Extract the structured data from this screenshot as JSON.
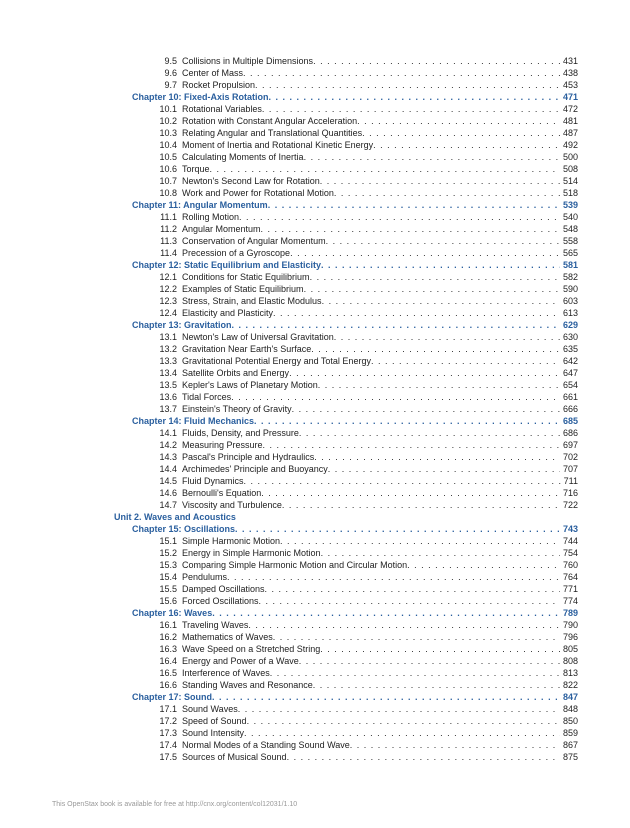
{
  "colors": {
    "link": "#2a5f9e",
    "text": "#222222",
    "footer": "#999999",
    "background": "#ffffff"
  },
  "fonts": {
    "body": 9,
    "footer": 7
  },
  "entries": [
    {
      "type": "section",
      "num": "9.5",
      "title": "Collisions in Multiple Dimensions",
      "page": "431"
    },
    {
      "type": "section",
      "num": "9.6",
      "title": "Center of Mass",
      "page": "438"
    },
    {
      "type": "section",
      "num": "9.7",
      "title": "Rocket Propulsion",
      "page": "453"
    },
    {
      "type": "chapter",
      "title": "Chapter 10:  Fixed-Axis Rotation",
      "page": "471"
    },
    {
      "type": "section",
      "num": "10.1",
      "title": "Rotational Variables",
      "page": "472"
    },
    {
      "type": "section",
      "num": "10.2",
      "title": "Rotation with Constant Angular Acceleration",
      "page": "481"
    },
    {
      "type": "section",
      "num": "10.3",
      "title": "Relating Angular and Translational Quantities",
      "page": "487"
    },
    {
      "type": "section",
      "num": "10.4",
      "title": "Moment of Inertia and Rotational Kinetic Energy",
      "page": "492"
    },
    {
      "type": "section",
      "num": "10.5",
      "title": "Calculating Moments of Inertia",
      "page": "500"
    },
    {
      "type": "section",
      "num": "10.6",
      "title": "Torque",
      "page": "508"
    },
    {
      "type": "section",
      "num": "10.7",
      "title": "Newton's Second Law for Rotation",
      "page": "514"
    },
    {
      "type": "section",
      "num": "10.8",
      "title": "Work and Power for Rotational Motion",
      "page": "518"
    },
    {
      "type": "chapter",
      "title": "Chapter 11:  Angular Momentum",
      "page": "539"
    },
    {
      "type": "section",
      "num": "11.1",
      "title": "Rolling Motion",
      "page": "540"
    },
    {
      "type": "section",
      "num": "11.2",
      "title": "Angular Momentum",
      "page": "548"
    },
    {
      "type": "section",
      "num": "11.3",
      "title": "Conservation of Angular Momentum",
      "page": "558"
    },
    {
      "type": "section",
      "num": "11.4",
      "title": "Precession of a Gyroscope",
      "page": "565"
    },
    {
      "type": "chapter",
      "title": "Chapter 12:  Static Equilibrium and Elasticity",
      "page": "581"
    },
    {
      "type": "section",
      "num": "12.1",
      "title": "Conditions for Static Equilibrium",
      "page": "582"
    },
    {
      "type": "section",
      "num": "12.2",
      "title": "Examples of Static Equilibrium",
      "page": "590"
    },
    {
      "type": "section",
      "num": "12.3",
      "title": "Stress, Strain, and Elastic Modulus",
      "page": "603"
    },
    {
      "type": "section",
      "num": "12.4",
      "title": "Elasticity and Plasticity",
      "page": "613"
    },
    {
      "type": "chapter",
      "title": "Chapter 13:  Gravitation",
      "page": "629"
    },
    {
      "type": "section",
      "num": "13.1",
      "title": "Newton's Law of Universal Gravitation",
      "page": "630"
    },
    {
      "type": "section",
      "num": "13.2",
      "title": "Gravitation Near Earth's Surface",
      "page": "635"
    },
    {
      "type": "section",
      "num": "13.3",
      "title": "Gravitational Potential Energy and Total Energy",
      "page": "642"
    },
    {
      "type": "section",
      "num": "13.4",
      "title": "Satellite Orbits and Energy",
      "page": "647"
    },
    {
      "type": "section",
      "num": "13.5",
      "title": "Kepler's Laws of Planetary Motion",
      "page": "654"
    },
    {
      "type": "section",
      "num": "13.6",
      "title": "Tidal Forces",
      "page": "661"
    },
    {
      "type": "section",
      "num": "13.7",
      "title": "Einstein's Theory of Gravity",
      "page": "666"
    },
    {
      "type": "chapter",
      "title": "Chapter 14:  Fluid Mechanics",
      "page": "685"
    },
    {
      "type": "section",
      "num": "14.1",
      "title": "Fluids, Density, and Pressure",
      "page": "686"
    },
    {
      "type": "section",
      "num": "14.2",
      "title": "Measuring Pressure",
      "page": "697"
    },
    {
      "type": "section",
      "num": "14.3",
      "title": "Pascal's Principle and Hydraulics",
      "page": "702"
    },
    {
      "type": "section",
      "num": "14.4",
      "title": "Archimedes' Principle and Buoyancy",
      "page": "707"
    },
    {
      "type": "section",
      "num": "14.5",
      "title": "Fluid Dynamics",
      "page": "711"
    },
    {
      "type": "section",
      "num": "14.6",
      "title": "Bernoulli's Equation",
      "page": "716"
    },
    {
      "type": "section",
      "num": "14.7",
      "title": "Viscosity and Turbulence",
      "page": "722"
    },
    {
      "type": "unit",
      "title": "Unit 2. Waves and Acoustics"
    },
    {
      "type": "chapter",
      "title": "Chapter 15:  Oscillations",
      "page": "743"
    },
    {
      "type": "section",
      "num": "15.1",
      "title": "Simple Harmonic Motion",
      "page": "744"
    },
    {
      "type": "section",
      "num": "15.2",
      "title": "Energy in Simple Harmonic Motion",
      "page": "754"
    },
    {
      "type": "section",
      "num": "15.3",
      "title": "Comparing Simple Harmonic Motion and Circular Motion",
      "page": "760"
    },
    {
      "type": "section",
      "num": "15.4",
      "title": "Pendulums",
      "page": "764"
    },
    {
      "type": "section",
      "num": "15.5",
      "title": "Damped Oscillations",
      "page": "771"
    },
    {
      "type": "section",
      "num": "15.6",
      "title": "Forced Oscillations",
      "page": "774"
    },
    {
      "type": "chapter",
      "title": "Chapter 16:  Waves",
      "page": "789"
    },
    {
      "type": "section",
      "num": "16.1",
      "title": "Traveling Waves",
      "page": "790"
    },
    {
      "type": "section",
      "num": "16.2",
      "title": "Mathematics of Waves",
      "page": "796"
    },
    {
      "type": "section",
      "num": "16.3",
      "title": "Wave Speed on a Stretched String",
      "page": "805"
    },
    {
      "type": "section",
      "num": "16.4",
      "title": "Energy and Power of a Wave",
      "page": "808"
    },
    {
      "type": "section",
      "num": "16.5",
      "title": "Interference of Waves",
      "page": "813"
    },
    {
      "type": "section",
      "num": "16.6",
      "title": "Standing Waves and Resonance",
      "page": "822"
    },
    {
      "type": "chapter",
      "title": "Chapter 17:  Sound",
      "page": "847"
    },
    {
      "type": "section",
      "num": "17.1",
      "title": "Sound Waves",
      "page": "848"
    },
    {
      "type": "section",
      "num": "17.2",
      "title": "Speed of Sound",
      "page": "850"
    },
    {
      "type": "section",
      "num": "17.3",
      "title": "Sound Intensity",
      "page": "859"
    },
    {
      "type": "section",
      "num": "17.4",
      "title": "Normal Modes of a Standing Sound Wave",
      "page": "867"
    },
    {
      "type": "section",
      "num": "17.5",
      "title": "Sources of Musical Sound",
      "page": "875"
    }
  ],
  "footer": "This OpenStax book is available for free at http://cnx.org/content/col12031/1.10"
}
